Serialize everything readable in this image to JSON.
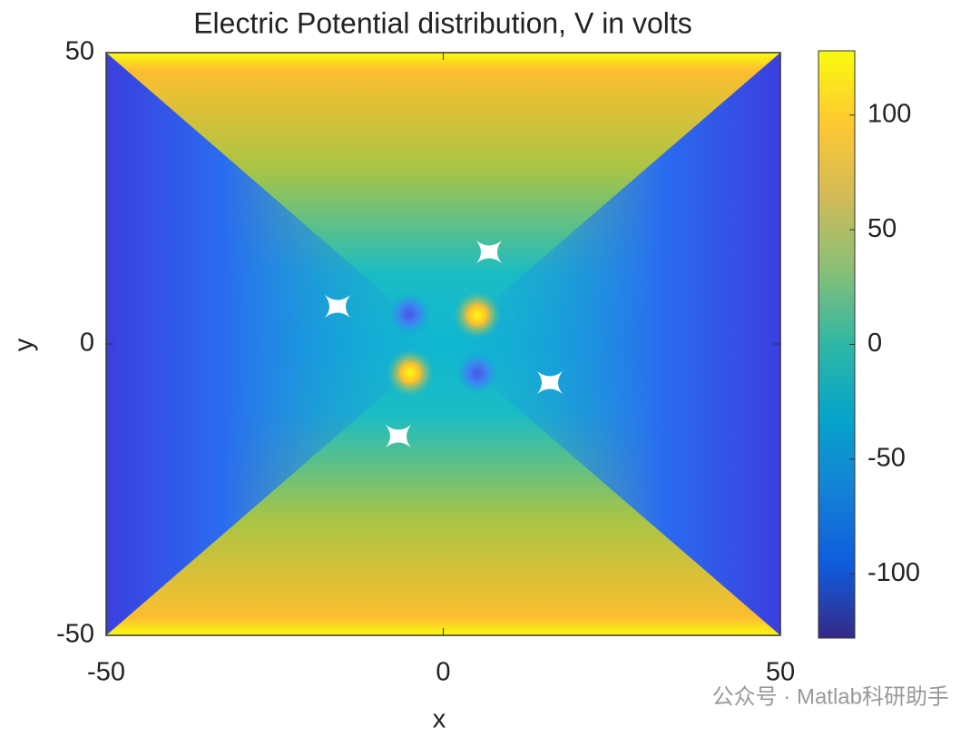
{
  "chart_data": {
    "type": "heatmap",
    "title": "Electric Potential distribution, V in volts",
    "x_label": "x",
    "y_label": "y",
    "xlim": [
      -50,
      50
    ],
    "ylim": [
      -50,
      50
    ],
    "xticks": [
      -50,
      0,
      50
    ],
    "yticks": [
      -50,
      0,
      50
    ],
    "colormap": "parula",
    "clim": [
      -128,
      128
    ],
    "cticks": [
      -100,
      -50,
      0,
      50,
      100
    ],
    "watermark": "公众号 · Matlab科研助手"
  }
}
